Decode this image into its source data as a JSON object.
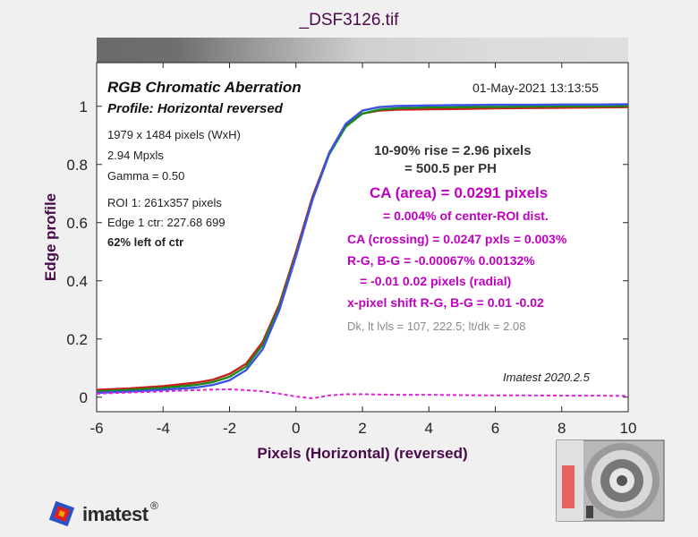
{
  "window_title": "_DSF3126.tif",
  "header": {
    "title": "RGB Chromatic Aberration",
    "profile": "Profile: Horizontal reversed",
    "timestamp": "01-May-2021 13:13:55"
  },
  "image_info": [
    "1979 x 1484 pixels (WxH)",
    "2.94 Mpxls",
    "Gamma = 0.50",
    "ROI 1: 261x357 pixels",
    "Edge 1 ctr: 227.68  699"
  ],
  "roi_position": "62% left of ctr",
  "results": {
    "rise_line1": "10-90% rise = 2.96 pixels",
    "rise_line2": "= 500.5 per PH",
    "ca_area": "CA (area) = 0.0291 pixels",
    "ca_area_pct": "= 0.004% of center-ROI dist.",
    "ca_crossing": "CA (crossing) = 0.0247 pxls = 0.003%",
    "rg_bg": "R-G, B-G = -0.00067%  0.00132%",
    "rg_bg_px": "= -0.01  0.02 pixels (radial)",
    "xshift": "x-pixel shift R-G, B-G = 0.01  -0.02",
    "levels": "Dk, lt lvls = 107, 222.5;  lt/dk = 2.08"
  },
  "version": "Imatest 2020.2.5",
  "logo": "imatest",
  "colors": {
    "red": "#c8201c",
    "green": "#1a8a1a",
    "blue": "#3a52e6",
    "diff": "#e020e0",
    "axis_label": "#4a0a4a"
  },
  "chart_data": {
    "type": "line",
    "xlabel": "Pixels (Horizontal)   (reversed)",
    "ylabel": "Edge profile",
    "xlim": [
      -6,
      10
    ],
    "ylim": [
      -0.05,
      1.15
    ],
    "xticks": [
      -6,
      -4,
      -2,
      0,
      2,
      4,
      6,
      8,
      10
    ],
    "yticks": [
      0,
      0.2,
      0.4,
      0.6,
      0.8,
      1
    ],
    "x": [
      -6,
      -5,
      -4,
      -3,
      -2.5,
      -2,
      -1.5,
      -1,
      -0.5,
      0,
      0.5,
      1,
      1.5,
      2,
      2.5,
      3,
      4,
      5,
      6,
      7,
      8,
      9,
      10
    ],
    "series": [
      {
        "name": "R",
        "color": "#c8201c",
        "values": [
          0.025,
          0.03,
          0.038,
          0.05,
          0.06,
          0.08,
          0.115,
          0.19,
          0.32,
          0.5,
          0.69,
          0.84,
          0.935,
          0.975,
          0.985,
          0.988,
          0.99,
          0.991,
          0.993,
          0.994,
          0.995,
          0.996,
          0.997
        ]
      },
      {
        "name": "G",
        "color": "#1a8a1a",
        "values": [
          0.02,
          0.025,
          0.032,
          0.042,
          0.052,
          0.07,
          0.105,
          0.18,
          0.31,
          0.49,
          0.68,
          0.835,
          0.93,
          0.975,
          0.988,
          0.993,
          0.996,
          0.997,
          0.998,
          0.999,
          1.0,
          1.0,
          1.001
        ]
      },
      {
        "name": "B",
        "color": "#3a52e6",
        "values": [
          0.015,
          0.019,
          0.025,
          0.033,
          0.042,
          0.058,
          0.093,
          0.165,
          0.3,
          0.485,
          0.68,
          0.84,
          0.94,
          0.985,
          0.997,
          1.001,
          1.003,
          1.004,
          1.005,
          1.005,
          1.006,
          1.006,
          1.007
        ]
      },
      {
        "name": "difference",
        "color": "#e020e0",
        "dashed": true,
        "values": [
          0.012,
          0.016,
          0.02,
          0.024,
          0.026,
          0.027,
          0.024,
          0.02,
          0.012,
          0.002,
          -0.004,
          0.006,
          0.01,
          0.01,
          0.009,
          0.008,
          0.008,
          0.007,
          0.006,
          0.006,
          0.005,
          0.005,
          0.004
        ]
      }
    ]
  }
}
